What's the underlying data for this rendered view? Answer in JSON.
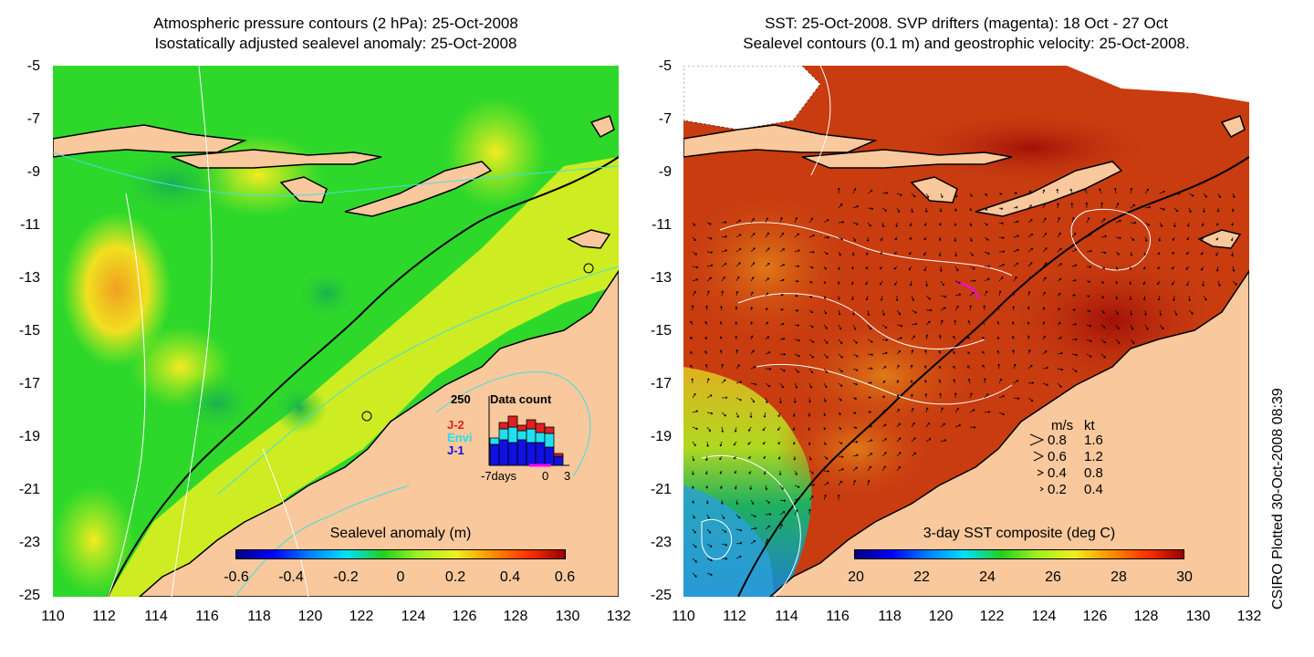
{
  "left_panel": {
    "title_line1": "Atmospheric pressure contours (2 hPa): 25-Oct-2008",
    "title_line2": "Isostatically adjusted sealevel anomaly: 25-Oct-2008",
    "colorbar": {
      "label": "Sealevel anomaly (m)",
      "ticks": [
        "-0.6",
        "-0.4",
        "-0.2",
        "0",
        "0.2",
        "0.4",
        "0.6"
      ],
      "range": [
        -0.6,
        0.6
      ]
    },
    "data_count_inset": {
      "max_label": "250",
      "title": "Data count",
      "series_labels": [
        "J-2",
        "Envi",
        "J-1"
      ],
      "series_colors": [
        "#e02020",
        "#20e0f0",
        "#1010e0"
      ],
      "x_labels": [
        "-7days",
        "0",
        "3"
      ]
    }
  },
  "right_panel": {
    "title_line1": "SST: 25-Oct-2008. SVP drifters (magenta): 18 Oct - 27 Oct",
    "title_line2": "Sealevel contours (0.1 m) and geostrophic velocity: 25-Oct-2008.",
    "colorbar": {
      "label": "3-day SST composite (deg C)",
      "ticks": [
        "20",
        "22",
        "24",
        "26",
        "28",
        "30"
      ],
      "range": [
        20,
        30
      ]
    },
    "velocity_legend": {
      "header_ms": "m/s",
      "header_kt": "kt",
      "rows": [
        {
          "ms": "0.8",
          "kt": "1.6"
        },
        {
          "ms": "0.6",
          "kt": "1.2"
        },
        {
          "ms": "0.4",
          "kt": "0.8"
        },
        {
          "ms": "0.2",
          "kt": "0.4"
        }
      ]
    }
  },
  "axes": {
    "lat_ticks": [
      "-5",
      "-7",
      "-9",
      "-11",
      "-13",
      "-15",
      "-17",
      "-19",
      "-21",
      "-23",
      "-25"
    ],
    "lon_ticks": [
      "110",
      "112",
      "114",
      "116",
      "118",
      "120",
      "122",
      "124",
      "126",
      "128",
      "130",
      "132"
    ]
  },
  "credit": "CSIRO Plotted 30-Oct-2008 08:39",
  "colors": {
    "land": "#f9c89c",
    "sla_background": "#2ed82a",
    "sst_background": "#c83c10",
    "coastline": "#000000",
    "pressure_contour": "#40e0e0"
  }
}
